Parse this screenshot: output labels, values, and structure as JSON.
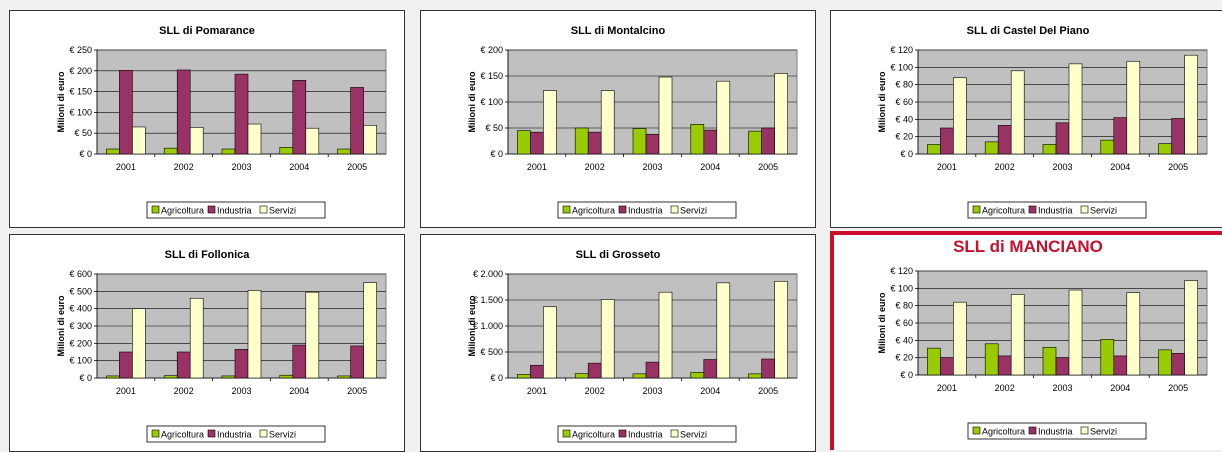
{
  "legend": {
    "items": [
      {
        "label": "Agricoltura",
        "color": "#99cc00"
      },
      {
        "label": "Industria",
        "color": "#993366"
      },
      {
        "label": "Servizi",
        "color": "#ffffcc"
      }
    ]
  },
  "ylabel": "Milioni di euro",
  "colors": {
    "plot_bg": "#c0c0c0",
    "highlight_border": "#c8102e",
    "highlight_title": "#c8102e"
  },
  "chart_data": [
    {
      "type": "bar",
      "title": "SLL di Pomarance",
      "categories": [
        "2001",
        "2002",
        "2003",
        "2004",
        "2005"
      ],
      "ylabel": "Milioni di euro",
      "ylim": [
        0,
        250
      ],
      "yticks": [
        0,
        50,
        100,
        150,
        200,
        250
      ],
      "ytick_labels": [
        "€ 0",
        "€ 50",
        "€ 100",
        "€ 150",
        "€ 200",
        "€ 250"
      ],
      "series": [
        {
          "name": "Agricoltura",
          "values": [
            12,
            14,
            12,
            16,
            12
          ]
        },
        {
          "name": "Industria",
          "values": [
            201,
            202,
            192,
            177,
            160
          ]
        },
        {
          "name": "Servizi",
          "values": [
            65,
            64,
            72,
            62,
            69
          ]
        }
      ],
      "grid": true,
      "legend_position": "bottom"
    },
    {
      "type": "bar",
      "title": "SLL di Montalcino",
      "categories": [
        "2001",
        "2002",
        "2003",
        "2004",
        "2005"
      ],
      "ylabel": "Milioni di euro",
      "ylim": [
        0,
        200
      ],
      "yticks": [
        0,
        50,
        100,
        150,
        200
      ],
      "ytick_labels": [
        "€ 0",
        "€ 50",
        "€ 100",
        "€ 150",
        "€ 200"
      ],
      "series": [
        {
          "name": "Agricoltura",
          "values": [
            45,
            50,
            49,
            57,
            44
          ]
        },
        {
          "name": "Industria",
          "values": [
            42,
            42,
            38,
            46,
            50
          ]
        },
        {
          "name": "Servizi",
          "values": [
            122,
            122,
            148,
            140,
            155
          ]
        }
      ],
      "grid": true,
      "legend_position": "bottom"
    },
    {
      "type": "bar",
      "title": "SLL di Castel Del Piano",
      "categories": [
        "2001",
        "2002",
        "2003",
        "2004",
        "2005"
      ],
      "ylabel": "Milioni di euro",
      "ylim": [
        0,
        120
      ],
      "yticks": [
        0,
        20,
        40,
        60,
        80,
        100,
        120
      ],
      "ytick_labels": [
        "€ 0",
        "€ 20",
        "€ 40",
        "€ 60",
        "€ 80",
        "€ 100",
        "€ 120"
      ],
      "series": [
        {
          "name": "Agricoltura",
          "values": [
            11,
            14,
            11,
            16,
            12
          ]
        },
        {
          "name": "Industria",
          "values": [
            30,
            33,
            36,
            42,
            41
          ]
        },
        {
          "name": "Servizi",
          "values": [
            88,
            96,
            104,
            107,
            114
          ]
        }
      ],
      "grid": true,
      "legend_position": "bottom"
    },
    {
      "type": "bar",
      "title": "SLL di Follonica",
      "categories": [
        "2001",
        "2002",
        "2003",
        "2004",
        "2005"
      ],
      "ylabel": "Milioni di euro",
      "ylim": [
        0,
        600
      ],
      "yticks": [
        0,
        100,
        200,
        300,
        400,
        500,
        600
      ],
      "ytick_labels": [
        "€ 0",
        "€ 100",
        "€ 200",
        "€ 300",
        "€ 400",
        "€ 500",
        "€ 600"
      ],
      "series": [
        {
          "name": "Agricoltura",
          "values": [
            12,
            14,
            12,
            16,
            12
          ]
        },
        {
          "name": "Industria",
          "values": [
            150,
            150,
            165,
            190,
            185
          ]
        },
        {
          "name": "Servizi",
          "values": [
            400,
            460,
            505,
            495,
            550
          ]
        }
      ],
      "grid": true,
      "legend_position": "bottom"
    },
    {
      "type": "bar",
      "title": "SLL di Grosseto",
      "categories": [
        "2001",
        "2002",
        "2003",
        "2004",
        "2005"
      ],
      "ylabel": "Milioni di euro",
      "ylim": [
        0,
        2000
      ],
      "yticks": [
        0,
        500,
        1000,
        1500,
        2000
      ],
      "ytick_labels": [
        "€ 0",
        "€ 500",
        "€ 1.000",
        "€ 1.500",
        "€ 2.000"
      ],
      "series": [
        {
          "name": "Agricoltura",
          "values": [
            70,
            85,
            80,
            110,
            80
          ]
        },
        {
          "name": "Industria",
          "values": [
            245,
            285,
            305,
            355,
            365
          ]
        },
        {
          "name": "Servizi",
          "values": [
            1370,
            1510,
            1650,
            1830,
            1860
          ]
        }
      ],
      "grid": true,
      "legend_position": "bottom"
    },
    {
      "type": "bar",
      "title": "SLL di MANCIANO",
      "highlight": true,
      "categories": [
        "2001",
        "2002",
        "2003",
        "2004",
        "2005"
      ],
      "ylabel": "Milioni di euro",
      "ylim": [
        0,
        120
      ],
      "yticks": [
        0,
        20,
        40,
        60,
        80,
        100,
        120
      ],
      "ytick_labels": [
        "€ 0",
        "€ 20",
        "€ 40",
        "€ 60",
        "€ 80",
        "€ 100",
        "€ 120"
      ],
      "series": [
        {
          "name": "Agricoltura",
          "values": [
            31,
            36,
            32,
            41,
            29
          ]
        },
        {
          "name": "Industria",
          "values": [
            20,
            22,
            20,
            22,
            25
          ]
        },
        {
          "name": "Servizi",
          "values": [
            84,
            93,
            98,
            95,
            109
          ]
        }
      ],
      "grid": true,
      "legend_position": "bottom"
    }
  ]
}
